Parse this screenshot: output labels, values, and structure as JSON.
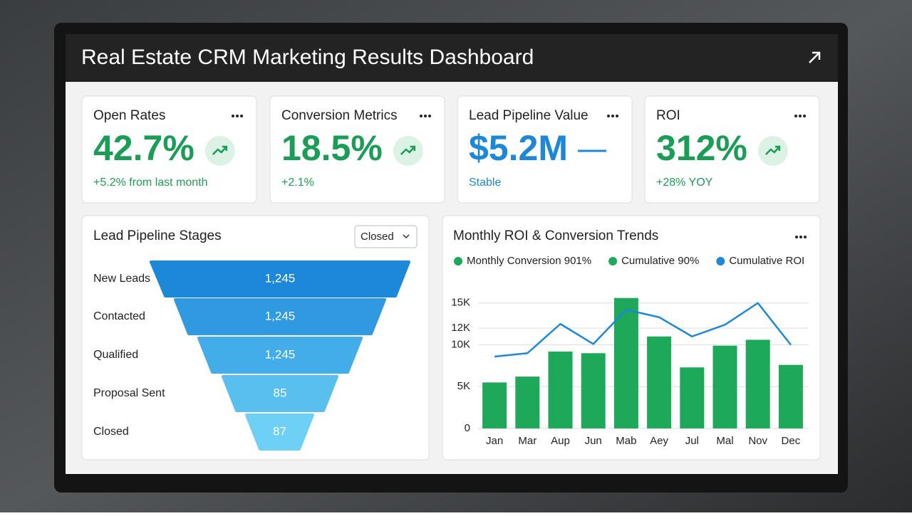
{
  "header": {
    "title": "Real Estate CRM Marketing Results Dashboard"
  },
  "kpis": [
    {
      "title": "Open Rates",
      "value": "42.7%",
      "delta": "+5.2% from last month",
      "trend": "up",
      "color": "#1a9e55"
    },
    {
      "title": "Conversion Metrics",
      "value": "18.5%",
      "delta": "+2.1%",
      "trend": "up",
      "color": "#1a9e55"
    },
    {
      "title": "Lead Pipeline Value",
      "value": "$5.2M",
      "delta": "Stable",
      "trend": "flat",
      "color": "#1e88d8"
    },
    {
      "title": "ROI",
      "value": "312%",
      "delta": "+28% YOY",
      "trend": "up",
      "color": "#1a9e55"
    }
  ],
  "funnel": {
    "title": "Lead Pipeline Stages",
    "filter": "Closed",
    "stages": [
      {
        "label": "New Leads",
        "value": "1,245"
      },
      {
        "label": "Contacted",
        "value": "1,245"
      },
      {
        "label": "Qualified",
        "value": "1,245"
      },
      {
        "label": "Proposal Sent",
        "value": "85"
      },
      {
        "label": "Closed",
        "value": "87"
      }
    ]
  },
  "chart_data": {
    "type": "bar_line",
    "title": "Monthly ROI & Conversion Trends",
    "categories": [
      "Jan",
      "Mar",
      "Aup",
      "Jun",
      "Mab",
      "Aey",
      "Jul",
      "Mal",
      "Nov",
      "Dec"
    ],
    "series": [
      {
        "name": "Monthly Conversion 901%",
        "color": "#1ea85a",
        "type": "bar",
        "values": [
          5500,
          6200,
          9200,
          9000,
          15600,
          11000,
          7300,
          9900,
          10600,
          7600
        ]
      },
      {
        "name": "Cumulative 90%",
        "color": "#1ea85a"
      },
      {
        "name": "Cumulative ROI",
        "color": "#1e88d8",
        "type": "line",
        "values": [
          8600,
          9000,
          12500,
          10100,
          14200,
          13300,
          11000,
          12400,
          15000,
          10000
        ]
      }
    ],
    "ylim": [
      0,
      16000
    ],
    "yticks": [
      0,
      {
        "value": 5000,
        "label": "5K"
      },
      {
        "value": 10000,
        "label": "10K"
      },
      {
        "value": 12000,
        "label": "12K"
      },
      {
        "value": 15000,
        "label": "15K"
      }
    ],
    "grid": true
  }
}
